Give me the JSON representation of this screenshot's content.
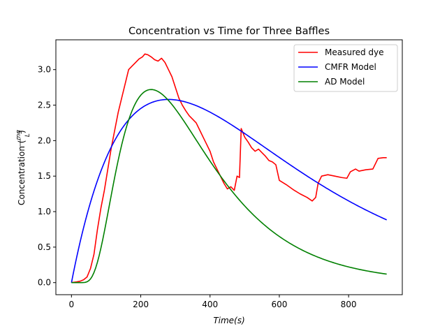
{
  "chart_data": {
    "type": "line",
    "title": "Concentration vs Time for Three Baffles",
    "xlabel": "Time(s)",
    "ylabel_prefix": "Concentration (",
    "ylabel_num": "mg",
    "ylabel_den": "L",
    "ylabel_suffix": ")",
    "xlim": [
      -45,
      955
    ],
    "ylim": [
      -0.17,
      3.42
    ],
    "xticks": [
      0,
      200,
      400,
      600,
      800
    ],
    "yticks": [
      0.0,
      0.5,
      1.0,
      1.5,
      2.0,
      2.5,
      3.0
    ],
    "grid": false,
    "legend_position": "top-right",
    "series": [
      {
        "name": "Measured dye",
        "color": "#ff0000",
        "points": [
          [
            0,
            0
          ],
          [
            15,
            0.01
          ],
          [
            25,
            0.02
          ],
          [
            35,
            0.04
          ],
          [
            45,
            0.08
          ],
          [
            55,
            0.2
          ],
          [
            65,
            0.4
          ],
          [
            75,
            0.75
          ],
          [
            85,
            1.05
          ],
          [
            95,
            1.3
          ],
          [
            105,
            1.6
          ],
          [
            115,
            1.9
          ],
          [
            125,
            2.15
          ],
          [
            135,
            2.4
          ],
          [
            145,
            2.6
          ],
          [
            155,
            2.8
          ],
          [
            165,
            3.0
          ],
          [
            175,
            3.05
          ],
          [
            185,
            3.1
          ],
          [
            195,
            3.15
          ],
          [
            205,
            3.18
          ],
          [
            212,
            3.22
          ],
          [
            220,
            3.21
          ],
          [
            230,
            3.18
          ],
          [
            240,
            3.14
          ],
          [
            250,
            3.12
          ],
          [
            260,
            3.16
          ],
          [
            270,
            3.1
          ],
          [
            280,
            3.0
          ],
          [
            290,
            2.9
          ],
          [
            300,
            2.75
          ],
          [
            310,
            2.6
          ],
          [
            320,
            2.5
          ],
          [
            330,
            2.42
          ],
          [
            340,
            2.35
          ],
          [
            350,
            2.3
          ],
          [
            360,
            2.25
          ],
          [
            370,
            2.15
          ],
          [
            380,
            2.05
          ],
          [
            390,
            1.95
          ],
          [
            400,
            1.85
          ],
          [
            410,
            1.7
          ],
          [
            420,
            1.6
          ],
          [
            430,
            1.5
          ],
          [
            440,
            1.4
          ],
          [
            450,
            1.32
          ],
          [
            460,
            1.35
          ],
          [
            470,
            1.3
          ],
          [
            478,
            1.5
          ],
          [
            485,
            1.48
          ],
          [
            490,
            2.17
          ],
          [
            500,
            2.05
          ],
          [
            510,
            1.98
          ],
          [
            520,
            1.9
          ],
          [
            530,
            1.85
          ],
          [
            540,
            1.88
          ],
          [
            550,
            1.83
          ],
          [
            560,
            1.78
          ],
          [
            570,
            1.72
          ],
          [
            580,
            1.7
          ],
          [
            590,
            1.66
          ],
          [
            600,
            1.44
          ],
          [
            620,
            1.38
          ],
          [
            640,
            1.31
          ],
          [
            660,
            1.25
          ],
          [
            680,
            1.2
          ],
          [
            695,
            1.15
          ],
          [
            705,
            1.2
          ],
          [
            712,
            1.4
          ],
          [
            722,
            1.5
          ],
          [
            740,
            1.52
          ],
          [
            760,
            1.5
          ],
          [
            780,
            1.48
          ],
          [
            795,
            1.47
          ],
          [
            805,
            1.56
          ],
          [
            820,
            1.6
          ],
          [
            830,
            1.57
          ],
          [
            850,
            1.59
          ],
          [
            870,
            1.6
          ],
          [
            885,
            1.75
          ],
          [
            900,
            1.76
          ],
          [
            910,
            1.76
          ]
        ]
      },
      {
        "name": "CMFR Model",
        "color": "#0000ff",
        "model": "cmfr",
        "params": {
          "peak": 2.58,
          "peak_time": 280,
          "x_end": 910
        }
      },
      {
        "name": "AD Model",
        "color": "#008000",
        "model": "ad",
        "params": {
          "peak": 2.72,
          "peak_time": 230,
          "x_end": 910
        }
      }
    ]
  }
}
